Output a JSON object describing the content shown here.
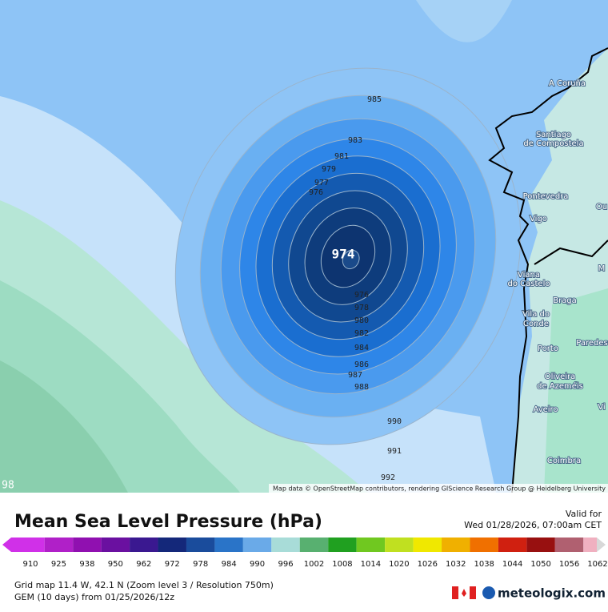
{
  "map": {
    "contour_labels": [
      "985",
      "983",
      "981",
      "979",
      "977",
      "976",
      "974",
      "976",
      "978",
      "980",
      "982",
      "984",
      "986",
      "987",
      "988",
      "990",
      "991",
      "992",
      "98"
    ],
    "cities": [
      "A Coruña",
      "Santiago",
      "de Compostela",
      "Pontevedra",
      "Vigo",
      "Viana",
      "do Castelo",
      "Braga",
      "Vila do",
      "Conde",
      "Porto",
      "Paredes",
      "Oliveira",
      "de Azeméis",
      "Aveiro",
      "Coimbra",
      "Ou",
      "M",
      "Vi"
    ],
    "attribution": "Map data © OpenStreetMap contributors, rendering GIScience Research Group @ Heidelberg University"
  },
  "legend": {
    "title": "Mean Sea Level Pressure (hPa)",
    "valid_label": "Valid for",
    "valid_time": "Wed 01/28/2026, 07:00am CET",
    "scale_labels": [
      "910",
      "925",
      "938",
      "950",
      "962",
      "972",
      "978",
      "984",
      "990",
      "996",
      "1002",
      "1008",
      "1014",
      "1020",
      "1026",
      "1032",
      "1038",
      "1044",
      "1050",
      "1056",
      "1062"
    ],
    "scale_colors": [
      "#d030e8",
      "#b020c8",
      "#9010b0",
      "#6a10a0",
      "#3a1890",
      "#14287a",
      "#1a4c9c",
      "#2a74c8",
      "#6aaae8",
      "#a8dcd8",
      "#58b070",
      "#20a020",
      "#70c820",
      "#c0e020",
      "#f0e800",
      "#f0b000",
      "#f07000",
      "#d02010",
      "#981010",
      "#b06070",
      "#f0b0c0"
    ],
    "grid_info": "Grid map 11.4 W, 42.1 N (Zoom level 3 / Resolution 750m)",
    "model_info": "GEM (10 days) from 01/25/2026/12z",
    "brand": "meteologix.com"
  }
}
